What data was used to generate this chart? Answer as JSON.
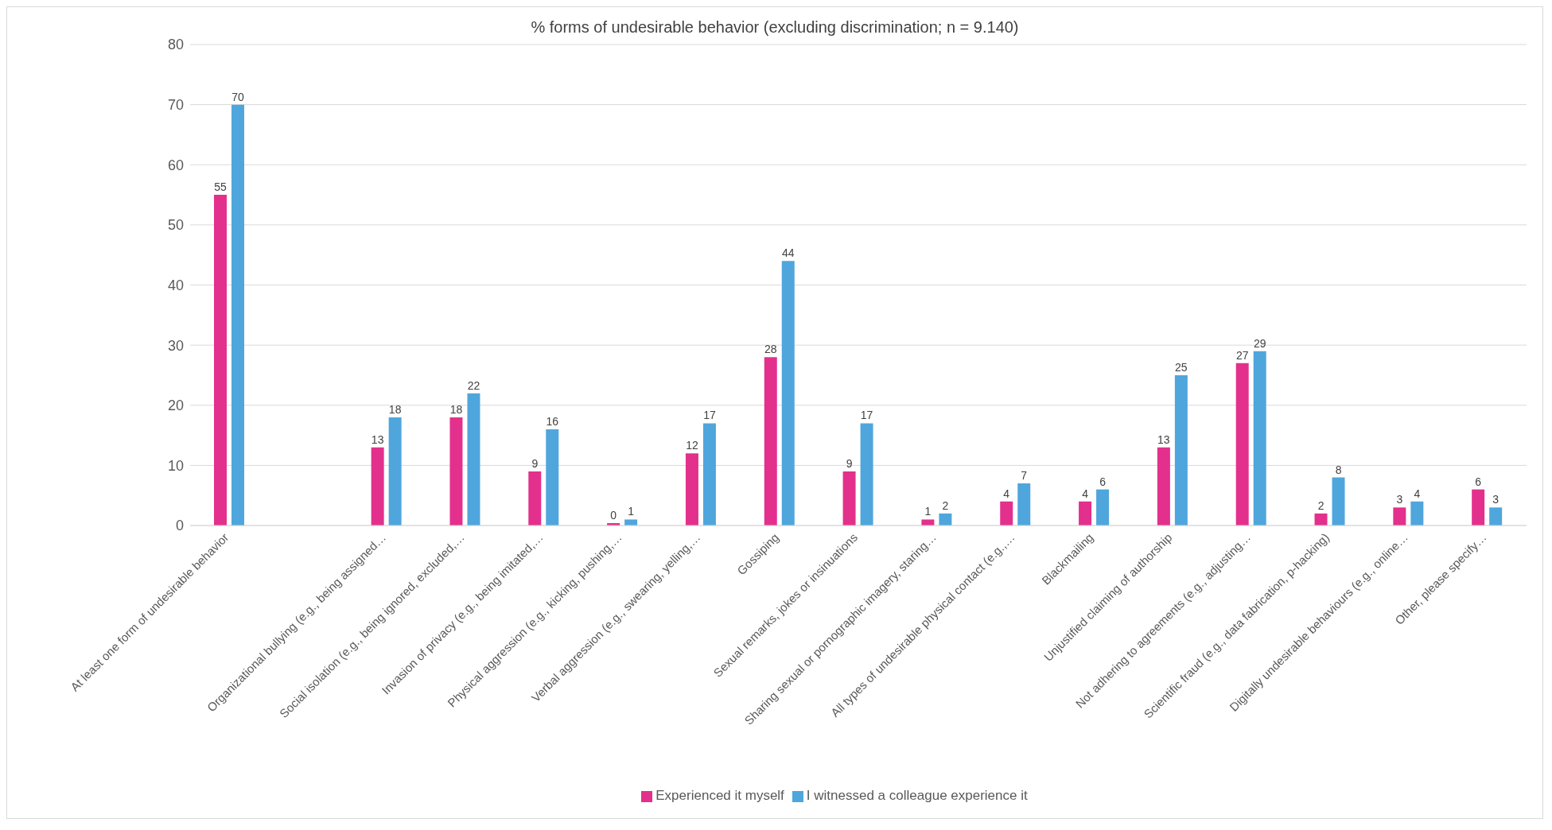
{
  "chart_data": {
    "type": "bar",
    "title": "% forms of undesirable behavior (excluding discrimination; n = 9.140)",
    "categories": [
      "At least one form of undesirable behavior",
      null,
      "Organizational bullying (e.g., being assigned…",
      "Social isolation (e.g., being ignored, excluded,…",
      "Invasion of privacy (e.g., being imitated,…",
      "Physical aggression (e.g., kicking, pushing,…",
      "Verbal aggression (e.g., swearing, yelling,…",
      "Gossiping",
      "Sexual remarks, jokes or insinuations",
      "Sharing sexual or pornographic imagery, staring…",
      "All types of undesirable physical contact (e.g.,…",
      "Blackmailing",
      "Unjustified claiming of authorship",
      "Not adhering to agreements (e.g., adjusting…",
      "Scientific fraud (e.g., data fabrication, p-hacking)",
      "Digitally undesirable behaviours (e.g., online…",
      "Other, please specify…"
    ],
    "series": [
      {
        "name": "Experienced it myself",
        "color": "#e3308c",
        "values": [
          55,
          null,
          13,
          18,
          9,
          0.4,
          12,
          28,
          9,
          1,
          4,
          4,
          13,
          27,
          2,
          3,
          6
        ],
        "value_labels": [
          "55",
          null,
          "13",
          "18",
          "9",
          "0",
          "12",
          "28",
          "9",
          "1",
          "4",
          "4",
          "13",
          "27",
          "2",
          "3",
          "6"
        ]
      },
      {
        "name": "I witnessed a colleague experience it",
        "color": "#4fa6dc",
        "values": [
          70,
          null,
          18,
          22,
          16,
          1,
          17,
          44,
          17,
          2,
          7,
          6,
          25,
          29,
          8,
          4,
          3
        ],
        "value_labels": [
          "70",
          null,
          "18",
          "22",
          "16",
          "1",
          "17",
          "44",
          "17",
          "2",
          "7",
          "6",
          "25",
          "29",
          "8",
          "4",
          "3"
        ]
      }
    ],
    "ylim": [
      0,
      80
    ],
    "yticks": [
      0,
      10,
      20,
      30,
      40,
      50,
      60,
      70,
      80
    ],
    "grid": "y",
    "legend": "bottom"
  }
}
